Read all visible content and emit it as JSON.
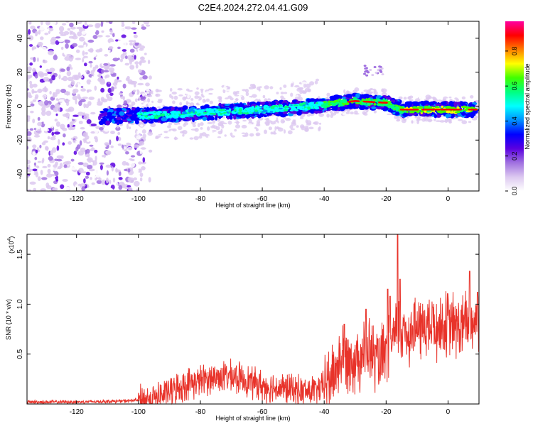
{
  "title": "C2E4.2024.272.04.41.G09",
  "chart_data": [
    {
      "type": "heatmap",
      "xlabel": "Height of straight line (km)",
      "ylabel": "Frequency (Hz)",
      "xlim": [
        -136,
        10
      ],
      "ylim": [
        -50,
        50
      ],
      "x_ticks": [
        -120,
        -100,
        -80,
        -60,
        -40,
        -20,
        0
      ],
      "y_ticks": [
        -40,
        -20,
        0,
        20,
        40
      ],
      "ridge": {
        "description_points": [
          [
            -110,
            -6
          ],
          [
            -90,
            -5
          ],
          [
            -70,
            -3
          ],
          [
            -50,
            -1
          ],
          [
            -40,
            1
          ],
          [
            -30,
            3
          ],
          [
            -20,
            2
          ],
          [
            -15,
            -2
          ],
          [
            0,
            -2
          ],
          [
            9,
            -2
          ]
        ]
      },
      "colorbar": {
        "label": "Normalized spectral amplitude",
        "ticks": [
          0.0,
          0.2,
          0.4,
          0.6,
          0.8
        ],
        "range": [
          0,
          0.97
        ],
        "colors": [
          "#ffffff",
          "#dcc8f0",
          "#a070e0",
          "#5a00e0",
          "#0000ff",
          "#0090ff",
          "#00ffff",
          "#00ff80",
          "#40ff00",
          "#ffff00",
          "#ff8000",
          "#ff0000",
          "#ff00a0"
        ]
      }
    },
    {
      "type": "line",
      "xlabel": "Height of straight line (km)",
      "ylabel": "SNR (10 * v/v)",
      "y_multiplier": "(x10",
      "y_multiplier_exp": "4",
      "y_multiplier_close": ")",
      "xlim": [
        -136,
        10
      ],
      "ylim": [
        0,
        1.7
      ],
      "x_ticks": [
        -120,
        -100,
        -80,
        -60,
        -40,
        -20,
        0
      ],
      "y_ticks": [
        0.5,
        1.0,
        1.5
      ],
      "y_tick_labels": [
        "0.5",
        "1.0",
        "1.5"
      ],
      "color": "#e8332a",
      "envelope": [
        {
          "x": -136,
          "y": 0.02
        },
        {
          "x": -120,
          "y": 0.02
        },
        {
          "x": -104,
          "y": 0.03
        },
        {
          "x": -95,
          "y": 0.05
        },
        {
          "x": -90,
          "y": 0.12
        },
        {
          "x": -84,
          "y": 0.2
        },
        {
          "x": -78,
          "y": 0.25
        },
        {
          "x": -72,
          "y": 0.28
        },
        {
          "x": -66,
          "y": 0.25
        },
        {
          "x": -60,
          "y": 0.18
        },
        {
          "x": -52,
          "y": 0.15
        },
        {
          "x": -46,
          "y": 0.12
        },
        {
          "x": -41,
          "y": 0.15
        },
        {
          "x": -37,
          "y": 0.3
        },
        {
          "x": -34,
          "y": 0.5
        },
        {
          "x": -30,
          "y": 0.45
        },
        {
          "x": -26,
          "y": 0.55
        },
        {
          "x": -22,
          "y": 0.4
        },
        {
          "x": -19,
          "y": 0.55
        },
        {
          "x": -16,
          "y": 0.75
        },
        {
          "x": -12,
          "y": 0.72
        },
        {
          "x": -8,
          "y": 0.78
        },
        {
          "x": -4,
          "y": 0.75
        },
        {
          "x": 0,
          "y": 0.8
        },
        {
          "x": 4,
          "y": 0.76
        },
        {
          "x": 8,
          "y": 0.82
        },
        {
          "x": 10,
          "y": 0.9
        }
      ],
      "spikes": [
        {
          "x": -33.5,
          "y": 0.8
        },
        {
          "x": -26.5,
          "y": 0.95
        },
        {
          "x": -19.5,
          "y": 1.15
        },
        {
          "x": -18.7,
          "y": 1.08
        },
        {
          "x": -16.3,
          "y": 1.7
        },
        {
          "x": -15.5,
          "y": 1.25
        },
        {
          "x": -11,
          "y": 1.0
        },
        {
          "x": -5,
          "y": 0.97
        },
        {
          "x": 7,
          "y": 1.33
        },
        {
          "x": 9.5,
          "y": 1.12
        }
      ]
    }
  ]
}
